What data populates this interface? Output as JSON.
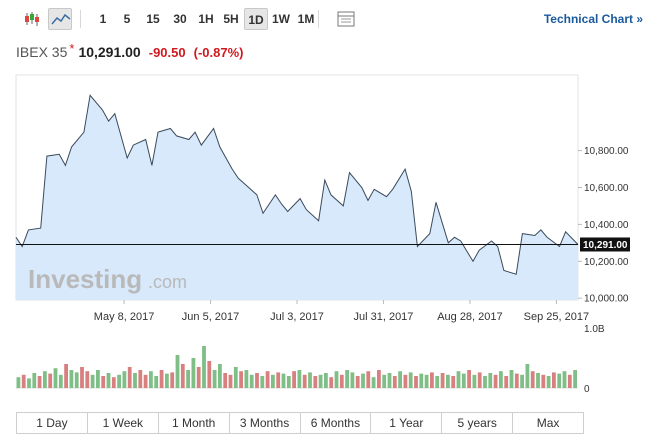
{
  "toolbar": {
    "intervals": [
      "1",
      "5",
      "15",
      "30",
      "1H",
      "5H",
      "1D",
      "1W",
      "1M"
    ],
    "active_interval": "1D",
    "technical_chart_label": "Technical Chart »"
  },
  "quote": {
    "name": "IBEX 35",
    "last": "10,291.00",
    "change": "-90.50",
    "change_pct": "(-0.87%)"
  },
  "watermark": {
    "brand": "Investing",
    "suffix": ".com"
  },
  "ranges": [
    "1 Day",
    "1 Week",
    "1 Month",
    "3 Months",
    "6 Months",
    "1 Year",
    "5 years",
    "Max"
  ],
  "colors": {
    "line": "#3a4a5c",
    "area": "#d7e9fb",
    "up": "#7fbf87",
    "down": "#d88080",
    "down_text": "#d0191e"
  },
  "chart_data": {
    "type": "area",
    "series": [
      {
        "name": "IBEX 35",
        "x": [
          "2017-04-03",
          "2017-04-05",
          "2017-04-07",
          "2017-04-11",
          "2017-04-13",
          "2017-04-17",
          "2017-04-19",
          "2017-04-21",
          "2017-04-25",
          "2017-04-27",
          "2017-05-01",
          "2017-05-03",
          "2017-05-05",
          "2017-05-09",
          "2017-05-11",
          "2017-05-15",
          "2017-05-17",
          "2017-05-19",
          "2017-05-23",
          "2017-05-25",
          "2017-05-29",
          "2017-05-31",
          "2017-06-02",
          "2017-06-06",
          "2017-06-08",
          "2017-06-12",
          "2017-06-14",
          "2017-06-16",
          "2017-06-20",
          "2017-06-22",
          "2017-06-26",
          "2017-06-28",
          "2017-06-30",
          "2017-07-04",
          "2017-07-06",
          "2017-07-10",
          "2017-07-12",
          "2017-07-14",
          "2017-07-18",
          "2017-07-20",
          "2017-07-24",
          "2017-07-26",
          "2017-07-28",
          "2017-08-01",
          "2017-08-03",
          "2017-08-07",
          "2017-08-09",
          "2017-08-11",
          "2017-08-15",
          "2017-08-17",
          "2017-08-21",
          "2017-08-23",
          "2017-08-25",
          "2017-08-29",
          "2017-08-31",
          "2017-09-04",
          "2017-09-06",
          "2017-09-08",
          "2017-09-12",
          "2017-09-14",
          "2017-09-18",
          "2017-09-20",
          "2017-09-22",
          "2017-09-26",
          "2017-09-28",
          "2017-10-02"
        ],
        "values": [
          10330,
          10280,
          10370,
          10380,
          10770,
          10780,
          10720,
          10820,
          10900,
          11100,
          11020,
          10960,
          11000,
          10760,
          10830,
          10860,
          10720,
          10900,
          10920,
          10880,
          10860,
          10900,
          10830,
          10920,
          10820,
          10700,
          10650,
          10620,
          10560,
          10460,
          10560,
          10510,
          10470,
          10540,
          10480,
          10420,
          10640,
          10560,
          10500,
          10680,
          10600,
          10530,
          10590,
          10550,
          10590,
          10700,
          10580,
          10280,
          10350,
          10520,
          10300,
          10330,
          10310,
          10200,
          10260,
          10310,
          10280,
          10150,
          10130,
          10350,
          10340,
          10370,
          10330,
          10280,
          10360,
          10291
        ]
      }
    ],
    "xticks": [
      "May 8, 2017",
      "Jun 5, 2017",
      "Jul 3, 2017",
      "Jul 31, 2017",
      "Aug 28, 2017",
      "Sep 25, 2017"
    ],
    "yticks": [
      "10,000.00",
      "10,200.00",
      "10,400.00",
      "10,600.00",
      "10,800.00"
    ],
    "ylim": [
      9990,
      11210
    ],
    "last_value_label": "10,291.00",
    "volume": {
      "axis_labels": [
        "1.0B",
        "0"
      ],
      "values": [
        0.18,
        0.22,
        0.16,
        0.25,
        0.2,
        0.28,
        0.24,
        0.33,
        0.22,
        0.4,
        0.3,
        0.26,
        0.35,
        0.28,
        0.22,
        0.3,
        0.2,
        0.25,
        0.18,
        0.22,
        0.28,
        0.35,
        0.25,
        0.3,
        0.22,
        0.28,
        0.2,
        0.3,
        0.24,
        0.26,
        0.55,
        0.4,
        0.3,
        0.5,
        0.35,
        0.7,
        0.45,
        0.3,
        0.4,
        0.25,
        0.22,
        0.35,
        0.28,
        0.3,
        0.22,
        0.25,
        0.2,
        0.28,
        0.22,
        0.26,
        0.24,
        0.2,
        0.28,
        0.3,
        0.22,
        0.26,
        0.2,
        0.22,
        0.25,
        0.18,
        0.28,
        0.22,
        0.3,
        0.26,
        0.2,
        0.24,
        0.28,
        0.18,
        0.3,
        0.22,
        0.25,
        0.2,
        0.28,
        0.22,
        0.26,
        0.2,
        0.24,
        0.22,
        0.26,
        0.2,
        0.25,
        0.22,
        0.2,
        0.28,
        0.24,
        0.3,
        0.22,
        0.26,
        0.2,
        0.25,
        0.22,
        0.28,
        0.2,
        0.3,
        0.24,
        0.22,
        0.4,
        0.28,
        0.25,
        0.22,
        0.2,
        0.26,
        0.24,
        0.28,
        0.22,
        0.3
      ],
      "up": [
        1,
        0,
        1,
        1,
        0,
        1,
        0,
        1,
        1,
        0,
        1,
        1,
        0,
        0,
        1,
        1,
        0,
        1,
        0,
        1,
        1,
        0,
        1,
        0,
        0,
        1,
        1,
        0,
        1,
        0,
        1,
        0,
        1,
        1,
        0,
        1,
        0,
        1,
        1,
        0,
        0,
        1,
        0,
        1,
        1,
        0,
        1,
        0,
        1,
        0,
        1,
        1,
        0,
        1,
        0,
        1,
        0,
        1,
        1,
        0,
        1,
        0,
        1,
        1,
        0,
        1,
        0,
        1,
        0,
        1,
        1,
        0,
        1,
        0,
        1,
        0,
        1,
        1,
        0,
        1,
        0,
        1,
        0,
        1,
        1,
        0,
        1,
        0,
        1,
        1,
        0,
        1,
        0,
        1,
        0,
        1,
        1,
        0,
        1,
        0,
        1,
        0,
        1,
        1,
        0,
        1
      ]
    }
  }
}
